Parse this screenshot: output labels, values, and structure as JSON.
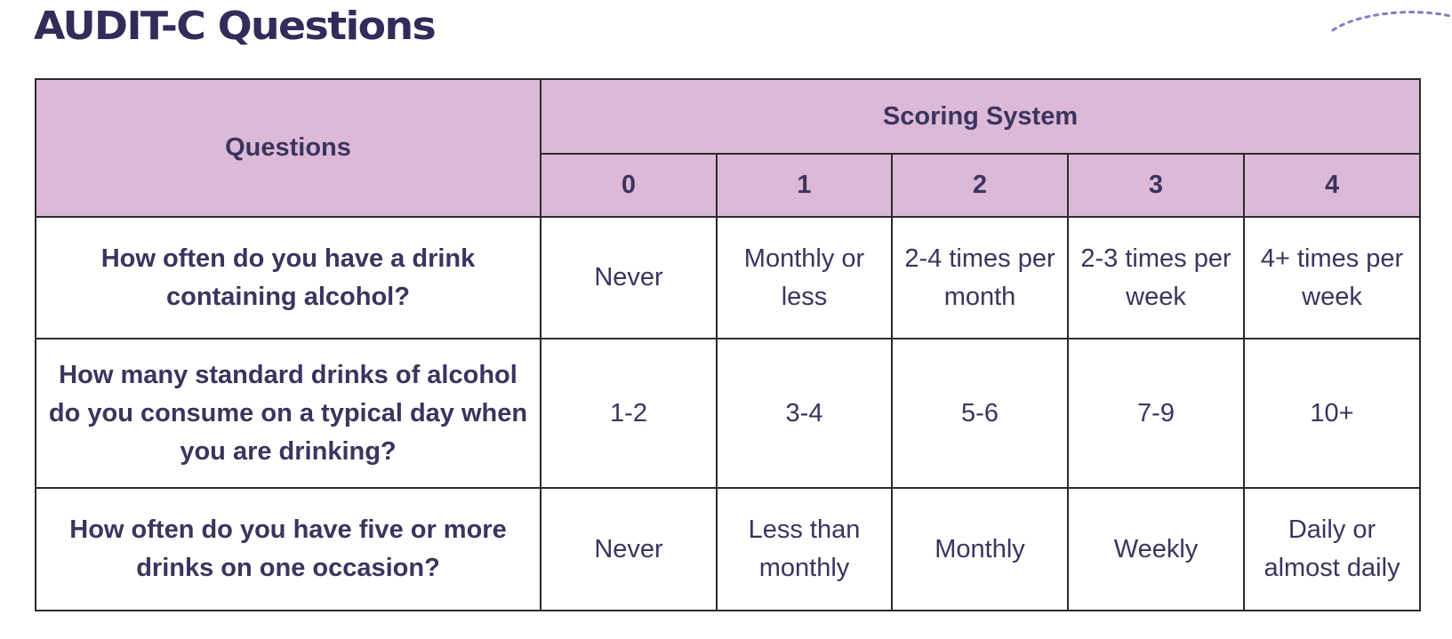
{
  "title": "AUDIT-C Questions",
  "colors": {
    "header_bg": "#ddb9d8",
    "text": "#3a345e",
    "border": "#2b2b2b",
    "accent_deco": "#8a7bc0"
  },
  "table": {
    "questions_header": "Questions",
    "scoring_header": "Scoring System",
    "scores": [
      "0",
      "1",
      "2",
      "3",
      "4"
    ],
    "rows": [
      {
        "question": "How often do you have a drink containing alcohol?",
        "answers": [
          "Never",
          "Monthly or less",
          "2-4 times per month",
          "2-3 times per week",
          "4+ times per week"
        ]
      },
      {
        "question": "How many standard drinks of alcohol do you consume on a typical day when you are drinking?",
        "answers": [
          "1-2",
          "3-4",
          "5-6",
          "7-9",
          "10+"
        ]
      },
      {
        "question": "How often do you have five or more drinks on one occasion?",
        "answers": [
          "Never",
          "Less than monthly",
          "Monthly",
          "Weekly",
          "Daily or almost daily"
        ]
      }
    ]
  }
}
